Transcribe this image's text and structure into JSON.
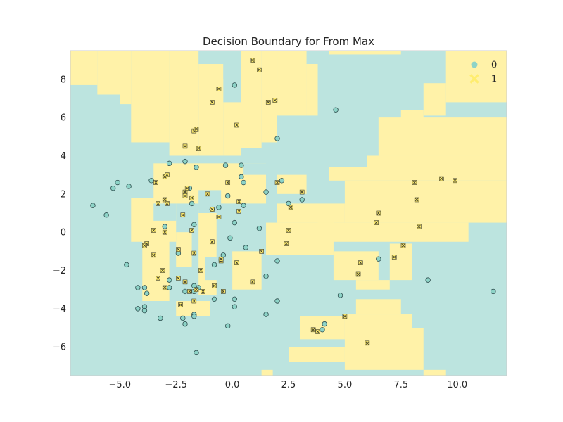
{
  "chart_data": {
    "type": "scatter",
    "title": "Decision Boundary for From Max",
    "xlabel": "",
    "ylabel": "",
    "xlim": [
      -7.2,
      12.2
    ],
    "ylim": [
      -7.5,
      9.5
    ],
    "xticks": [
      -5,
      -2.5,
      0,
      2.5,
      5,
      7.5,
      10
    ],
    "xtick_labels": [
      "−5.0",
      "−2.5",
      "0.0",
      "2.5",
      "5.0",
      "7.5",
      "10.0"
    ],
    "yticks": [
      -6,
      -4,
      -2,
      0,
      2,
      4,
      6,
      8
    ],
    "ytick_labels": [
      "−6",
      "−4",
      "−2",
      "0",
      "2",
      "4",
      "6",
      "8"
    ],
    "grid": true,
    "legend_position": "top-right",
    "colors": {
      "class0": "#8dd3c7",
      "class1": "#ffed6f",
      "region0": "#bce4df",
      "region1": "#fff2a8"
    },
    "legend": [
      {
        "label": "0",
        "marker": "circle"
      },
      {
        "label": "1",
        "marker": "x-square"
      }
    ],
    "decision_regions": [
      {
        "class": 1,
        "x": [
          -7.2,
          -6.0
        ],
        "y": [
          7.7,
          9.5
        ]
      },
      {
        "class": 1,
        "x": [
          -6.0,
          -5.0
        ],
        "y": [
          7.2,
          9.5
        ]
      },
      {
        "class": 1,
        "x": [
          -5.0,
          -4.5
        ],
        "y": [
          6.7,
          9.5
        ]
      },
      {
        "class": 1,
        "x": [
          -4.5,
          -2.8
        ],
        "y": [
          4.7,
          9.5
        ]
      },
      {
        "class": 1,
        "x": [
          -2.8,
          -1.5
        ],
        "y": [
          4.0,
          9.5
        ]
      },
      {
        "class": 1,
        "x": [
          -1.5,
          -0.4
        ],
        "y": [
          4.0,
          8.8
        ]
      },
      {
        "class": 1,
        "x": [
          -0.4,
          0.4
        ],
        "y": [
          4.0,
          6.8
        ]
      },
      {
        "class": 1,
        "x": [
          0.4,
          1.3
        ],
        "y": [
          4.4,
          9.5
        ]
      },
      {
        "class": 1,
        "x": [
          1.3,
          2.0
        ],
        "y": [
          4.7,
          9.5
        ]
      },
      {
        "class": 1,
        "x": [
          2.0,
          3.3
        ],
        "y": [
          6.1,
          9.5
        ]
      },
      {
        "class": 1,
        "x": [
          3.3,
          3.8
        ],
        "y": [
          6.1,
          8.8
        ]
      },
      {
        "class": 1,
        "x": [
          4.3,
          7.5
        ],
        "y": [
          9.3,
          9.5
        ]
      },
      {
        "class": 1,
        "x": [
          9.5,
          12.2
        ],
        "y": [
          6.8,
          9.5
        ]
      },
      {
        "class": 1,
        "x": [
          8.5,
          9.5
        ],
        "y": [
          6.1,
          7.8
        ]
      },
      {
        "class": 1,
        "x": [
          7.5,
          8.5
        ],
        "y": [
          5.0,
          6.4
        ]
      },
      {
        "class": 1,
        "x": [
          6.5,
          12.2
        ],
        "y": [
          4.0,
          6.0
        ]
      },
      {
        "class": 1,
        "x": [
          6.0,
          12.2
        ],
        "y": [
          3.4,
          4.0
        ]
      },
      {
        "class": 1,
        "x": [
          4.3,
          12.2
        ],
        "y": [
          2.7,
          3.4
        ]
      },
      {
        "class": 1,
        "x": [
          5.0,
          12.2
        ],
        "y": [
          0.5,
          2.7
        ]
      },
      {
        "class": 1,
        "x": [
          3.8,
          10.5
        ],
        "y": [
          -0.5,
          0.5
        ]
      },
      {
        "class": 1,
        "x": [
          2.0,
          3.3
        ],
        "y": [
          2.0,
          3.0
        ]
      },
      {
        "class": 1,
        "x": [
          2.0,
          5.0
        ],
        "y": [
          0.5,
          1.5
        ]
      },
      {
        "class": 1,
        "x": [
          1.5,
          4.5
        ],
        "y": [
          -1.2,
          0.5
        ]
      },
      {
        "class": 1,
        "x": [
          4.5,
          6.5
        ],
        "y": [
          -2.5,
          -1.0
        ]
      },
      {
        "class": 1,
        "x": [
          7.0,
          8.0
        ],
        "y": [
          -2.5,
          -0.6
        ]
      },
      {
        "class": 1,
        "x": [
          5.5,
          7.0
        ],
        "y": [
          -3.0,
          -2.5
        ]
      },
      {
        "class": 1,
        "x": [
          5.5,
          7.5
        ],
        "y": [
          -4.3,
          -3.5
        ]
      },
      {
        "class": 1,
        "x": [
          5.0,
          8.0
        ],
        "y": [
          -5.0,
          -4.3
        ]
      },
      {
        "class": 1,
        "x": [
          5.0,
          8.5
        ],
        "y": [
          -6.0,
          -5.0
        ]
      },
      {
        "class": 1,
        "x": [
          3.0,
          5.0
        ],
        "y": [
          -5.6,
          -4.4
        ]
      },
      {
        "class": 1,
        "x": [
          2.5,
          5.0
        ],
        "y": [
          -6.8,
          -6.0
        ]
      },
      {
        "class": 1,
        "x": [
          5.0,
          8.5
        ],
        "y": [
          -7.2,
          -6.0
        ]
      },
      {
        "class": 1,
        "x": [
          8.5,
          9.5
        ],
        "y": [
          -7.5,
          -7.2
        ]
      },
      {
        "class": 1,
        "x": [
          1.3,
          1.8
        ],
        "y": [
          -7.5,
          -7.2
        ]
      },
      {
        "class": 1,
        "x": [
          -4.5,
          -2.5
        ],
        "y": [
          -0.5,
          1.8
        ]
      },
      {
        "class": 1,
        "x": [
          -3.5,
          1.5
        ],
        "y": [
          1.5,
          3.6
        ]
      },
      {
        "class": 1,
        "x": [
          -4.0,
          -2.8
        ],
        "y": [
          -3.6,
          0.0
        ]
      },
      {
        "class": 1,
        "x": [
          -2.5,
          -1.8
        ],
        "y": [
          -1.8,
          0.0
        ]
      },
      {
        "class": 1,
        "x": [
          -1.5,
          -0.7
        ],
        "y": [
          -3.3,
          1.2
        ]
      },
      {
        "class": 1,
        "x": [
          0.0,
          1.3
        ],
        "y": [
          -3.0,
          -1.0
        ]
      },
      {
        "class": 1,
        "x": [
          -2.5,
          -1.0
        ],
        "y": [
          -4.4,
          -3.6
        ]
      },
      {
        "class": 0,
        "x": [
          -1.5,
          -0.5
        ],
        "y": [
          1.0,
          2.2
        ]
      },
      {
        "class": 0,
        "x": [
          -3.5,
          -2.5
        ],
        "y": [
          0.6,
          1.5
        ]
      },
      {
        "class": 0,
        "x": [
          -1.2,
          0.0
        ],
        "y": [
          -2.5,
          -1.3
        ]
      },
      {
        "class": 0,
        "x": [
          0.5,
          2.0
        ],
        "y": [
          3.0,
          3.6
        ]
      },
      {
        "class": 0,
        "x": [
          -0.4,
          0.0
        ],
        "y": [
          8.0,
          9.0
        ]
      }
    ],
    "series": [
      {
        "name": "0",
        "marker": "circle",
        "points": [
          [
            -6.2,
            1.4
          ],
          [
            -5.6,
            0.9
          ],
          [
            -5.3,
            2.3
          ],
          [
            -5.1,
            2.6
          ],
          [
            -4.6,
            2.4
          ],
          [
            -4.7,
            -1.7
          ],
          [
            -4.2,
            -2.9
          ],
          [
            -3.9,
            -2.9
          ],
          [
            -3.8,
            -3.2
          ],
          [
            -4.2,
            -4.0
          ],
          [
            -3.9,
            -3.9
          ],
          [
            -3.9,
            -4.1
          ],
          [
            -3.6,
            2.7
          ],
          [
            -3.2,
            -4.5
          ],
          [
            -3.0,
            0.3
          ],
          [
            -2.8,
            3.6
          ],
          [
            -2.8,
            -2.5
          ],
          [
            -2.8,
            -2.9
          ],
          [
            -2.4,
            -1.1
          ],
          [
            -2.2,
            -4.5
          ],
          [
            -2.1,
            -4.8
          ],
          [
            -2.1,
            3.7
          ],
          [
            -2.1,
            -3.1
          ],
          [
            -1.9,
            2.3
          ],
          [
            -1.8,
            1.5
          ],
          [
            -1.7,
            0.4
          ],
          [
            -1.7,
            -2.8
          ],
          [
            -1.7,
            -3.1
          ],
          [
            -1.6,
            3.4
          ],
          [
            -1.5,
            -2.9
          ],
          [
            -1.7,
            -4.3
          ],
          [
            -1.6,
            -6.3
          ],
          [
            -1.7,
            -4.4
          ],
          [
            -0.9,
            1.2
          ],
          [
            -0.8,
            -1.7
          ],
          [
            -0.8,
            -3.5
          ],
          [
            -0.6,
            1.3
          ],
          [
            -0.4,
            -1.2
          ],
          [
            -0.2,
            1.9
          ],
          [
            -0.3,
            3.5
          ],
          [
            -0.2,
            -4.9
          ],
          [
            -0.1,
            -0.3
          ],
          [
            0.1,
            7.7
          ],
          [
            0.1,
            0.5
          ],
          [
            0.1,
            -3.5
          ],
          [
            0.1,
            -3.9
          ],
          [
            0.4,
            2.9
          ],
          [
            0.4,
            3.5
          ],
          [
            0.5,
            1.4
          ],
          [
            0.5,
            2.6
          ],
          [
            0.6,
            -0.8
          ],
          [
            1.2,
            0.2
          ],
          [
            1.5,
            2.1
          ],
          [
            1.5,
            -2.3
          ],
          [
            1.5,
            -4.3
          ],
          [
            2.0,
            4.9
          ],
          [
            2.0,
            -1.5
          ],
          [
            2.0,
            -3.6
          ],
          [
            2.2,
            2.7
          ],
          [
            2.5,
            1.5
          ],
          [
            3.1,
            1.7
          ],
          [
            4.1,
            -4.8
          ],
          [
            4.0,
            -5.1
          ],
          [
            4.6,
            6.4
          ],
          [
            4.8,
            -3.3
          ],
          [
            6.5,
            -1.4
          ],
          [
            8.7,
            -2.5
          ],
          [
            11.6,
            -3.1
          ]
        ]
      },
      {
        "name": "1",
        "marker": "x-square",
        "points": [
          [
            0.9,
            9.0
          ],
          [
            1.2,
            8.5
          ],
          [
            -0.6,
            7.5
          ],
          [
            -0.9,
            6.8
          ],
          [
            1.6,
            6.8
          ],
          [
            1.9,
            6.9
          ],
          [
            -1.7,
            5.3
          ],
          [
            -1.6,
            5.4
          ],
          [
            0.2,
            5.6
          ],
          [
            -2.1,
            4.5
          ],
          [
            -1.5,
            4.4
          ],
          [
            -3.0,
            2.9
          ],
          [
            -2.9,
            3.0
          ],
          [
            -3.4,
            2.6
          ],
          [
            -2.1,
            2.1
          ],
          [
            -2.0,
            2.3
          ],
          [
            -2.1,
            1.9
          ],
          [
            -1.8,
            1.8
          ],
          [
            -1.1,
            2.0
          ],
          [
            -0.2,
            2.6
          ],
          [
            0.3,
            1.6
          ],
          [
            0.3,
            1.1
          ],
          [
            -3.3,
            1.5
          ],
          [
            -3.0,
            1.7
          ],
          [
            -2.9,
            1.5
          ],
          [
            -2.2,
            0.9
          ],
          [
            -0.9,
            1.2
          ],
          [
            -0.6,
            0.8
          ],
          [
            -3.5,
            0.1
          ],
          [
            -3.0,
            0.0
          ],
          [
            -1.8,
            0.1
          ],
          [
            -3.8,
            -0.6
          ],
          [
            -3.9,
            -0.7
          ],
          [
            -3.5,
            -1.2
          ],
          [
            -2.4,
            -0.9
          ],
          [
            -1.7,
            -1.1
          ],
          [
            -0.9,
            -0.5
          ],
          [
            -0.5,
            -1.5
          ],
          [
            -0.5,
            -1.4
          ],
          [
            -3.1,
            -2.0
          ],
          [
            -3.3,
            -2.4
          ],
          [
            -1.4,
            -2.0
          ],
          [
            -2.4,
            -2.4
          ],
          [
            -2.1,
            -2.6
          ],
          [
            -3.0,
            -2.9
          ],
          [
            -1.9,
            -3.1
          ],
          [
            -1.3,
            -3.1
          ],
          [
            -0.8,
            -2.8
          ],
          [
            -0.4,
            -3.1
          ],
          [
            -1.6,
            -3.0
          ],
          [
            -1.7,
            -3.6
          ],
          [
            -2.3,
            -3.8
          ],
          [
            0.2,
            -1.6
          ],
          [
            0.9,
            -2.6
          ],
          [
            1.3,
            -1.0
          ],
          [
            2.0,
            2.6
          ],
          [
            3.1,
            2.1
          ],
          [
            2.6,
            1.3
          ],
          [
            2.5,
            0.1
          ],
          [
            2.4,
            -0.6
          ],
          [
            3.6,
            -5.1
          ],
          [
            3.8,
            -5.2
          ],
          [
            5.0,
            -4.4
          ],
          [
            5.7,
            -1.6
          ],
          [
            5.6,
            -2.2
          ],
          [
            6.0,
            -5.8
          ],
          [
            6.5,
            1.0
          ],
          [
            6.4,
            0.5
          ],
          [
            7.6,
            -0.7
          ],
          [
            7.2,
            -1.3
          ],
          [
            8.1,
            2.6
          ],
          [
            8.2,
            1.7
          ],
          [
            8.3,
            0.3
          ],
          [
            9.3,
            2.8
          ],
          [
            9.9,
            2.7
          ]
        ]
      }
    ]
  }
}
